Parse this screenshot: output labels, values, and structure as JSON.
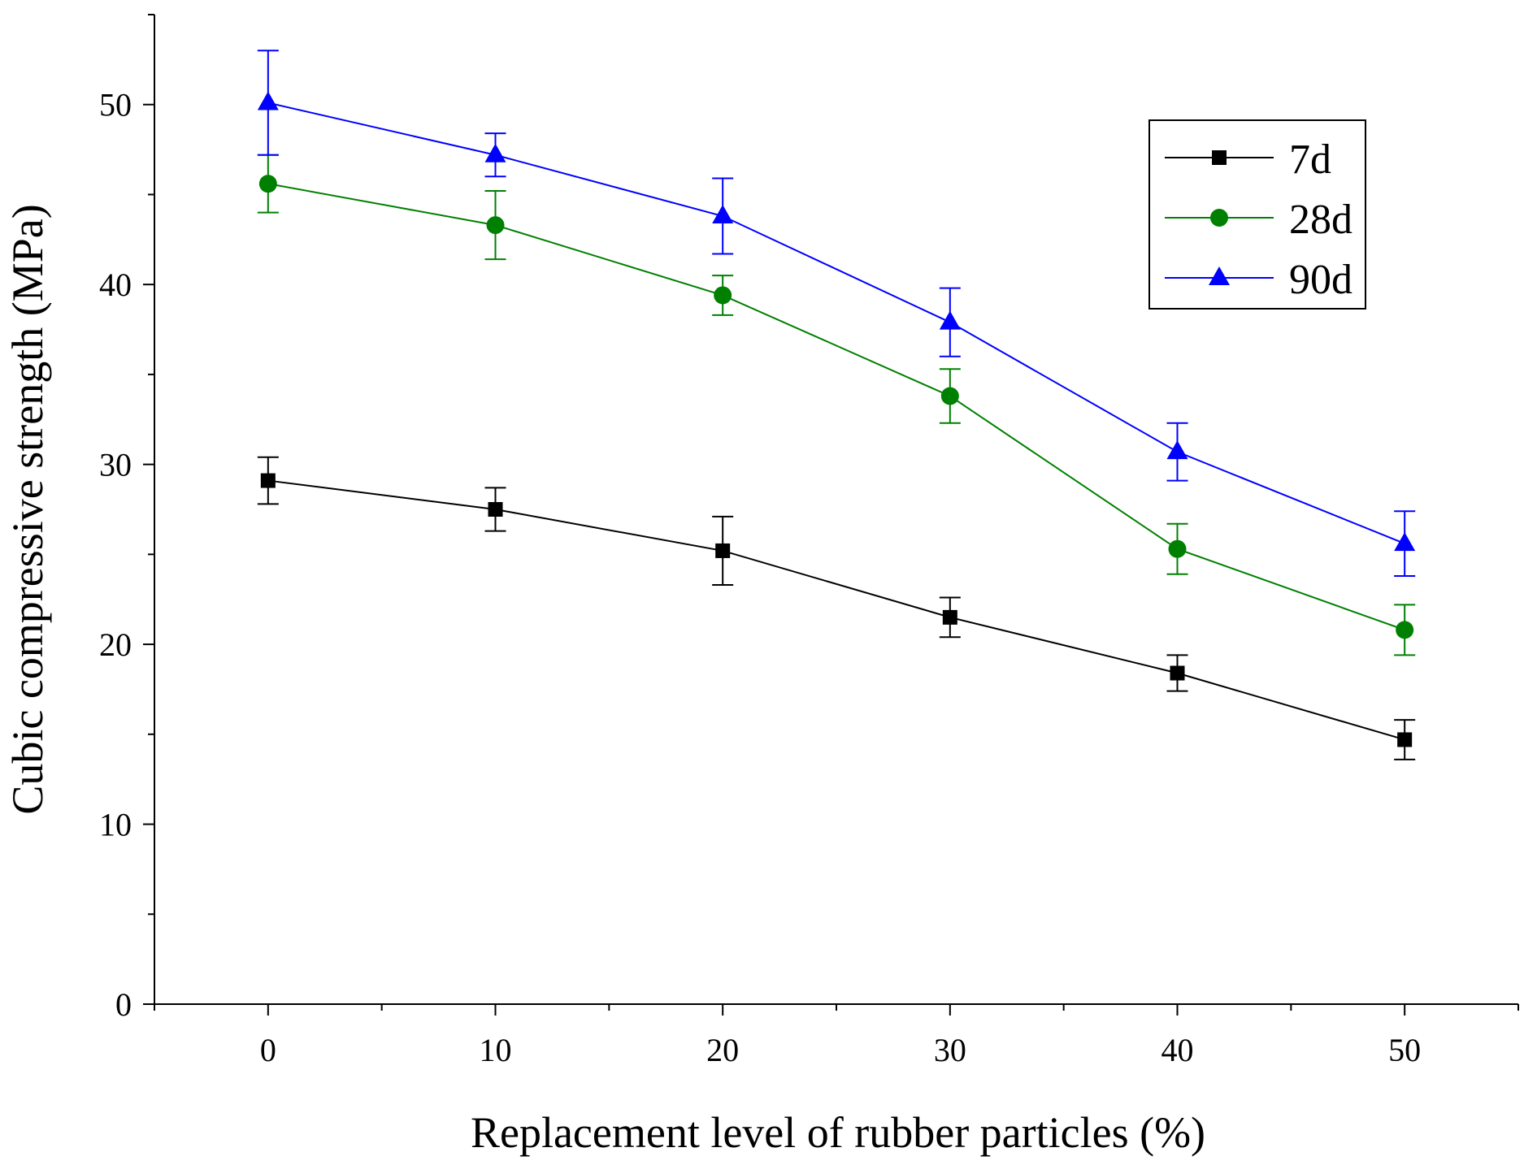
{
  "chart_data": {
    "type": "line",
    "title": "",
    "xlabel": "Replacement level of rubber particles (%)",
    "ylabel": "Cubic compressive strength (MPa)",
    "xlim": [
      -5,
      55
    ],
    "ylim": [
      0,
      55
    ],
    "xticks": [
      0,
      10,
      20,
      30,
      40,
      50
    ],
    "xtick_labels": [
      "0",
      "10",
      "20",
      "30",
      "40",
      "50"
    ],
    "xminor": [
      -5,
      5,
      15,
      25,
      35,
      45,
      55
    ],
    "yticks": [
      0,
      10,
      20,
      30,
      40,
      50
    ],
    "ytick_labels": [
      "0",
      "10",
      "20",
      "30",
      "40",
      "50"
    ],
    "yminor": [
      5,
      15,
      25,
      35,
      45,
      55
    ],
    "grid": false,
    "legend_position": "top-right",
    "x": [
      0,
      10,
      20,
      30,
      40,
      50
    ],
    "series": [
      {
        "name": "7d",
        "marker": "square",
        "color": "#000000",
        "values": [
          29.1,
          27.5,
          25.2,
          21.5,
          18.4,
          14.7
        ],
        "errors": [
          1.3,
          1.2,
          1.9,
          1.1,
          1.0,
          1.1
        ]
      },
      {
        "name": "28d",
        "marker": "circle",
        "color": "#008000",
        "values": [
          45.6,
          43.3,
          39.4,
          33.8,
          25.3,
          20.8
        ],
        "errors": [
          1.6,
          1.9,
          1.1,
          1.5,
          1.4,
          1.4
        ]
      },
      {
        "name": "90d",
        "marker": "triangle",
        "color": "#0000ff",
        "values": [
          50.1,
          47.2,
          43.8,
          37.9,
          30.7,
          25.6
        ],
        "errors": [
          2.9,
          1.2,
          2.1,
          1.9,
          1.6,
          1.8
        ]
      }
    ]
  }
}
